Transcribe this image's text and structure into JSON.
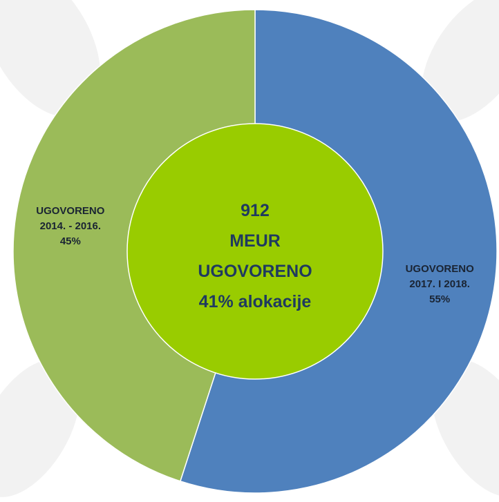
{
  "chart_data": {
    "type": "donut",
    "categories": [
      "UGOVORENO 2017. I 2018.",
      "UGOVORENO 2014. - 2016."
    ],
    "values": [
      55,
      45
    ],
    "value_labels": [
      "55%",
      "45%"
    ],
    "colors": [
      "#4f81bd",
      "#9bbb59"
    ],
    "center_color": "#99cc00",
    "annotations": [
      "912",
      "MEUR",
      "UGOVORENO",
      "41% alokacije"
    ]
  }
}
